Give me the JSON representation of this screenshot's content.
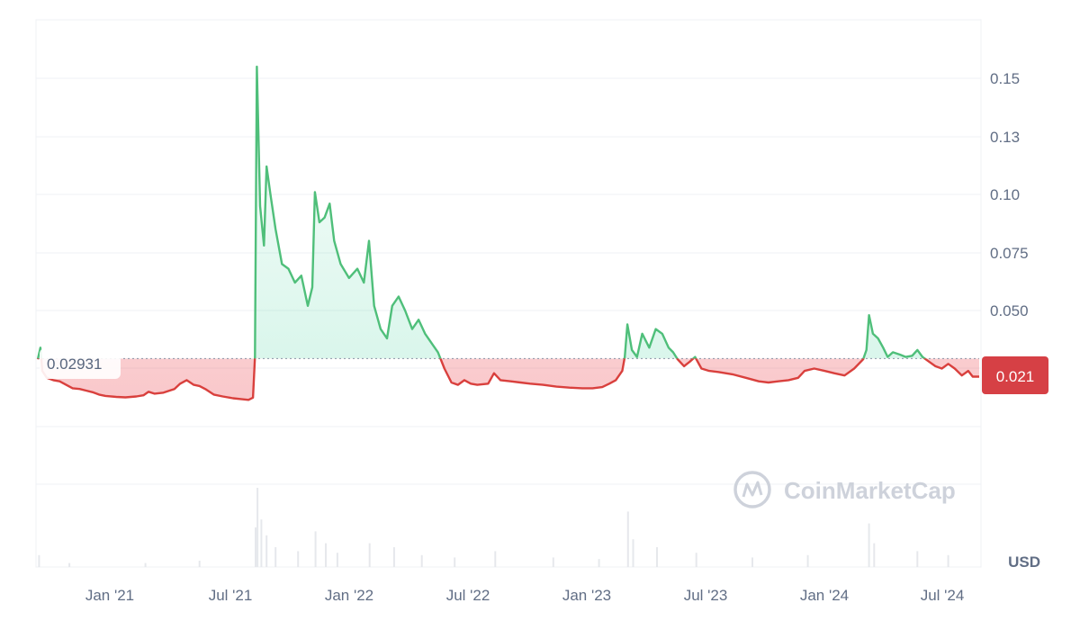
{
  "chart_data": {
    "type": "area",
    "currency_label": "USD",
    "reference_value": 0.02931,
    "reference_label": "0.02931",
    "last_value_label": "0.021",
    "watermark": "CoinMarketCap",
    "y_ticks": [
      {
        "label": "0.15",
        "value": 0.15
      },
      {
        "label": "0.13",
        "value": 0.125
      },
      {
        "label": "0.10",
        "value": 0.1
      },
      {
        "label": "0.075",
        "value": 0.075
      },
      {
        "label": "0.050",
        "value": 0.05
      }
    ],
    "x_ticks": [
      "Jan '21",
      "Jul '21",
      "Jan '22",
      "Jul '22",
      "Jan '23",
      "Jul '23",
      "Jan '24",
      "Jul '24"
    ],
    "x_range": [
      "2020-09-01",
      "2024-09-01"
    ],
    "ylim": [
      0,
      0.17
    ],
    "colors": {
      "up": "#16c784",
      "up_line": "#4fbf7a",
      "down_line": "#d9403d",
      "down_fill": "#ea3943",
      "last_badge": "#d64045"
    },
    "series": [
      {
        "values": [
          [
            "2020-09-01",
            0.029
          ],
          [
            "2020-09-05",
            0.034
          ],
          [
            "2020-09-08",
            0.024
          ],
          [
            "2020-09-15",
            0.021
          ],
          [
            "2020-09-25",
            0.02
          ],
          [
            "2020-10-05",
            0.0195
          ],
          [
            "2020-10-15",
            0.018
          ],
          [
            "2020-10-25",
            0.0165
          ],
          [
            "2020-11-05",
            0.0162
          ],
          [
            "2020-11-15",
            0.0155
          ],
          [
            "2020-11-25",
            0.0148
          ],
          [
            "2020-12-05",
            0.0138
          ],
          [
            "2020-12-15",
            0.0132
          ],
          [
            "2021-01-01",
            0.0128
          ],
          [
            "2021-01-15",
            0.0126
          ],
          [
            "2021-02-01",
            0.013
          ],
          [
            "2021-02-12",
            0.0135
          ],
          [
            "2021-02-20",
            0.015
          ],
          [
            "2021-03-01",
            0.0142
          ],
          [
            "2021-03-15",
            0.0146
          ],
          [
            "2021-04-01",
            0.0162
          ],
          [
            "2021-04-10",
            0.0185
          ],
          [
            "2021-04-20",
            0.02
          ],
          [
            "2021-05-01",
            0.018
          ],
          [
            "2021-05-10",
            0.0175
          ],
          [
            "2021-05-20",
            0.016
          ],
          [
            "2021-06-01",
            0.0138
          ],
          [
            "2021-06-15",
            0.013
          ],
          [
            "2021-07-01",
            0.0122
          ],
          [
            "2021-07-15",
            0.0118
          ],
          [
            "2021-07-25",
            0.0115
          ],
          [
            "2021-08-01",
            0.0125
          ],
          [
            "2021-08-04",
            0.03
          ],
          [
            "2021-08-07",
            0.155
          ],
          [
            "2021-08-12",
            0.095
          ],
          [
            "2021-08-18",
            0.078
          ],
          [
            "2021-08-22",
            0.112
          ],
          [
            "2021-08-28",
            0.1
          ],
          [
            "2021-09-05",
            0.085
          ],
          [
            "2021-09-15",
            0.07
          ],
          [
            "2021-09-25",
            0.068
          ],
          [
            "2021-10-05",
            0.062
          ],
          [
            "2021-10-15",
            0.065
          ],
          [
            "2021-10-25",
            0.052
          ],
          [
            "2021-11-01",
            0.06
          ],
          [
            "2021-11-05",
            0.101
          ],
          [
            "2021-11-12",
            0.088
          ],
          [
            "2021-11-20",
            0.09
          ],
          [
            "2021-11-28",
            0.096
          ],
          [
            "2021-12-05",
            0.08
          ],
          [
            "2021-12-15",
            0.07
          ],
          [
            "2021-12-28",
            0.064
          ],
          [
            "2022-01-10",
            0.068
          ],
          [
            "2022-01-20",
            0.062
          ],
          [
            "2022-01-28",
            0.08
          ],
          [
            "2022-02-05",
            0.052
          ],
          [
            "2022-02-15",
            0.042
          ],
          [
            "2022-02-25",
            0.038
          ],
          [
            "2022-03-05",
            0.052
          ],
          [
            "2022-03-15",
            0.056
          ],
          [
            "2022-03-25",
            0.05
          ],
          [
            "2022-04-05",
            0.042
          ],
          [
            "2022-04-15",
            0.046
          ],
          [
            "2022-04-25",
            0.04
          ],
          [
            "2022-05-05",
            0.036
          ],
          [
            "2022-05-15",
            0.032
          ],
          [
            "2022-05-25",
            0.025
          ],
          [
            "2022-06-05",
            0.019
          ],
          [
            "2022-06-15",
            0.018
          ],
          [
            "2022-06-25",
            0.02
          ],
          [
            "2022-07-05",
            0.0185
          ],
          [
            "2022-07-15",
            0.018
          ],
          [
            "2022-08-01",
            0.0185
          ],
          [
            "2022-08-10",
            0.023
          ],
          [
            "2022-08-20",
            0.02
          ],
          [
            "2022-09-05",
            0.0195
          ],
          [
            "2022-09-20",
            0.019
          ],
          [
            "2022-10-05",
            0.0185
          ],
          [
            "2022-10-25",
            0.018
          ],
          [
            "2022-11-15",
            0.0172
          ],
          [
            "2022-12-05",
            0.0168
          ],
          [
            "2022-12-25",
            0.0165
          ],
          [
            "2023-01-10",
            0.0165
          ],
          [
            "2023-01-25",
            0.017
          ],
          [
            "2023-02-05",
            0.0185
          ],
          [
            "2023-02-15",
            0.02
          ],
          [
            "2023-02-25",
            0.024
          ],
          [
            "2023-03-01",
            0.03
          ],
          [
            "2023-03-05",
            0.044
          ],
          [
            "2023-03-12",
            0.033
          ],
          [
            "2023-03-20",
            0.03
          ],
          [
            "2023-03-28",
            0.04
          ],
          [
            "2023-04-08",
            0.034
          ],
          [
            "2023-04-18",
            0.042
          ],
          [
            "2023-04-28",
            0.04
          ],
          [
            "2023-05-08",
            0.034
          ],
          [
            "2023-05-15",
            0.032
          ],
          [
            "2023-05-22",
            0.029
          ],
          [
            "2023-06-01",
            0.026
          ],
          [
            "2023-06-10",
            0.028
          ],
          [
            "2023-06-18",
            0.03
          ],
          [
            "2023-06-28",
            0.025
          ],
          [
            "2023-07-10",
            0.024
          ],
          [
            "2023-07-25",
            0.0235
          ],
          [
            "2023-08-15",
            0.0225
          ],
          [
            "2023-09-05",
            0.021
          ],
          [
            "2023-09-25",
            0.0195
          ],
          [
            "2023-10-10",
            0.019
          ],
          [
            "2023-10-25",
            0.0195
          ],
          [
            "2023-11-10",
            0.02
          ],
          [
            "2023-11-25",
            0.021
          ],
          [
            "2023-12-05",
            0.024
          ],
          [
            "2023-12-20",
            0.025
          ],
          [
            "2024-01-05",
            0.024
          ],
          [
            "2024-01-20",
            0.023
          ],
          [
            "2024-02-05",
            0.022
          ],
          [
            "2024-02-20",
            0.025
          ],
          [
            "2024-03-05",
            0.029
          ],
          [
            "2024-03-10",
            0.033
          ],
          [
            "2024-03-14",
            0.048
          ],
          [
            "2024-03-20",
            0.04
          ],
          [
            "2024-03-28",
            0.038
          ],
          [
            "2024-04-05",
            0.034
          ],
          [
            "2024-04-12",
            0.03
          ],
          [
            "2024-04-20",
            0.032
          ],
          [
            "2024-05-01",
            0.031
          ],
          [
            "2024-05-10",
            0.03
          ],
          [
            "2024-05-20",
            0.0305
          ],
          [
            "2024-05-28",
            0.033
          ],
          [
            "2024-06-05",
            0.03
          ],
          [
            "2024-06-15",
            0.028
          ],
          [
            "2024-06-25",
            0.026
          ],
          [
            "2024-07-05",
            0.025
          ],
          [
            "2024-07-15",
            0.027
          ],
          [
            "2024-07-25",
            0.025
          ],
          [
            "2024-08-05",
            0.022
          ],
          [
            "2024-08-15",
            0.024
          ],
          [
            "2024-08-22",
            0.0215
          ],
          [
            "2024-09-01",
            0.0215
          ]
        ]
      }
    ],
    "volume": [
      [
        "2020-09-03",
        0.15
      ],
      [
        "2020-10-20",
        0.05
      ],
      [
        "2021-02-15",
        0.05
      ],
      [
        "2021-05-10",
        0.08
      ],
      [
        "2021-08-05",
        0.5
      ],
      [
        "2021-08-08",
        1.0
      ],
      [
        "2021-08-14",
        0.6
      ],
      [
        "2021-08-22",
        0.4
      ],
      [
        "2021-09-05",
        0.25
      ],
      [
        "2021-10-10",
        0.2
      ],
      [
        "2021-11-06",
        0.45
      ],
      [
        "2021-11-22",
        0.3
      ],
      [
        "2021-12-10",
        0.18
      ],
      [
        "2022-01-29",
        0.3
      ],
      [
        "2022-03-08",
        0.25
      ],
      [
        "2022-04-20",
        0.15
      ],
      [
        "2022-06-10",
        0.12
      ],
      [
        "2022-08-12",
        0.2
      ],
      [
        "2022-11-10",
        0.12
      ],
      [
        "2023-01-20",
        0.1
      ],
      [
        "2023-03-06",
        0.7
      ],
      [
        "2023-03-14",
        0.35
      ],
      [
        "2023-04-20",
        0.25
      ],
      [
        "2023-06-20",
        0.18
      ],
      [
        "2023-09-15",
        0.12
      ],
      [
        "2023-12-10",
        0.15
      ],
      [
        "2024-03-14",
        0.55
      ],
      [
        "2024-03-22",
        0.3
      ],
      [
        "2024-05-28",
        0.2
      ],
      [
        "2024-07-15",
        0.15
      ]
    ]
  }
}
